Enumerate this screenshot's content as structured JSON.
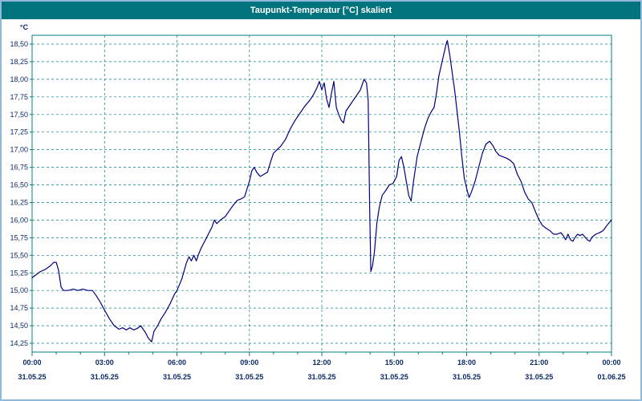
{
  "window": {
    "title": "Taupunkt-Temperatur [°C] skaliert"
  },
  "colors": {
    "title_bar": "#00737d",
    "frame": "#92b8d8",
    "grid": "#008080",
    "line": "#000080",
    "label_text": "#0c2a66",
    "plot_bg": "#ffffff"
  },
  "chart_data": {
    "type": "line",
    "title": "Taupunkt-Temperatur [°C] skaliert",
    "xlabel": "",
    "ylabel": "°C",
    "grid": true,
    "legend": "none",
    "xlim": [
      0,
      24
    ],
    "ylim": [
      14.125,
      18.625
    ],
    "y_tick_values": [
      18.5,
      18.25,
      18.0,
      17.75,
      17.5,
      17.25,
      17.0,
      16.75,
      16.5,
      16.25,
      16.0,
      15.75,
      15.5,
      15.25,
      15.0,
      14.75,
      14.5,
      14.25
    ],
    "y_tick_labels": [
      "18,50",
      "18,25",
      "18,00",
      "17,75",
      "17,50",
      "17,25",
      "17,00",
      "16,75",
      "16,50",
      "16,25",
      "16,00",
      "15,75",
      "15,50",
      "15,25",
      "15,00",
      "14,75",
      "14,50",
      "14,25"
    ],
    "x_tick_hours": [
      0,
      3,
      6,
      9,
      12,
      15,
      18,
      21,
      24
    ],
    "x_tick_labels": [
      "00:00",
      "03:00",
      "06:00",
      "09:00",
      "12:00",
      "15:00",
      "18:00",
      "21:00",
      "00:00"
    ],
    "x_date_labels": [
      "31.05.25",
      "31.05.25",
      "31.05.25",
      "31.05.25",
      "31.05.25",
      "31.05.25",
      "31.05.25",
      "31.05.25",
      "01.06.25"
    ],
    "series": [
      {
        "name": "Taupunkt-Temperatur",
        "points": [
          [
            0.0,
            15.18
          ],
          [
            0.15,
            15.22
          ],
          [
            0.35,
            15.27
          ],
          [
            0.55,
            15.3
          ],
          [
            0.75,
            15.35
          ],
          [
            0.9,
            15.4
          ],
          [
            1.0,
            15.4
          ],
          [
            1.1,
            15.28
          ],
          [
            1.2,
            15.05
          ],
          [
            1.3,
            15.0
          ],
          [
            1.5,
            15.0
          ],
          [
            1.7,
            15.02
          ],
          [
            1.9,
            15.0
          ],
          [
            2.1,
            15.02
          ],
          [
            2.3,
            15.0
          ],
          [
            2.5,
            15.0
          ],
          [
            2.65,
            14.93
          ],
          [
            2.8,
            14.85
          ],
          [
            3.0,
            14.72
          ],
          [
            3.2,
            14.6
          ],
          [
            3.4,
            14.5
          ],
          [
            3.6,
            14.45
          ],
          [
            3.75,
            14.47
          ],
          [
            3.9,
            14.44
          ],
          [
            4.05,
            14.47
          ],
          [
            4.2,
            14.44
          ],
          [
            4.35,
            14.46
          ],
          [
            4.5,
            14.5
          ],
          [
            4.6,
            14.45
          ],
          [
            4.7,
            14.4
          ],
          [
            4.8,
            14.33
          ],
          [
            4.95,
            14.27
          ],
          [
            5.05,
            14.42
          ],
          [
            5.2,
            14.5
          ],
          [
            5.35,
            14.6
          ],
          [
            5.5,
            14.68
          ],
          [
            5.7,
            14.8
          ],
          [
            5.9,
            14.95
          ],
          [
            6.0,
            15.0
          ],
          [
            6.1,
            15.08
          ],
          [
            6.2,
            15.16
          ],
          [
            6.3,
            15.28
          ],
          [
            6.4,
            15.4
          ],
          [
            6.5,
            15.48
          ],
          [
            6.6,
            15.42
          ],
          [
            6.7,
            15.5
          ],
          [
            6.8,
            15.42
          ],
          [
            6.9,
            15.52
          ],
          [
            7.0,
            15.6
          ],
          [
            7.15,
            15.7
          ],
          [
            7.3,
            15.8
          ],
          [
            7.45,
            15.9
          ],
          [
            7.55,
            16.0
          ],
          [
            7.65,
            15.95
          ],
          [
            7.8,
            16.0
          ],
          [
            8.0,
            16.05
          ],
          [
            8.2,
            16.15
          ],
          [
            8.35,
            16.22
          ],
          [
            8.5,
            16.28
          ],
          [
            8.65,
            16.3
          ],
          [
            8.8,
            16.33
          ],
          [
            9.0,
            16.55
          ],
          [
            9.1,
            16.7
          ],
          [
            9.2,
            16.75
          ],
          [
            9.3,
            16.68
          ],
          [
            9.45,
            16.62
          ],
          [
            9.6,
            16.65
          ],
          [
            9.75,
            16.68
          ],
          [
            9.9,
            16.85
          ],
          [
            10.0,
            16.95
          ],
          [
            10.15,
            17.0
          ],
          [
            10.3,
            17.05
          ],
          [
            10.5,
            17.15
          ],
          [
            10.7,
            17.3
          ],
          [
            10.9,
            17.42
          ],
          [
            11.1,
            17.52
          ],
          [
            11.3,
            17.62
          ],
          [
            11.5,
            17.7
          ],
          [
            11.65,
            17.78
          ],
          [
            11.8,
            17.88
          ],
          [
            11.9,
            17.97
          ],
          [
            12.0,
            17.85
          ],
          [
            12.1,
            17.95
          ],
          [
            12.2,
            17.72
          ],
          [
            12.3,
            17.6
          ],
          [
            12.4,
            17.8
          ],
          [
            12.5,
            17.97
          ],
          [
            12.6,
            17.6
          ],
          [
            12.7,
            17.5
          ],
          [
            12.8,
            17.42
          ],
          [
            12.9,
            17.38
          ],
          [
            13.0,
            17.55
          ],
          [
            13.2,
            17.65
          ],
          [
            13.4,
            17.75
          ],
          [
            13.6,
            17.85
          ],
          [
            13.75,
            18.0
          ],
          [
            13.85,
            17.95
          ],
          [
            13.92,
            17.7
          ],
          [
            13.98,
            16.2
          ],
          [
            14.03,
            15.27
          ],
          [
            14.1,
            15.35
          ],
          [
            14.18,
            15.55
          ],
          [
            14.28,
            15.95
          ],
          [
            14.38,
            16.18
          ],
          [
            14.5,
            16.35
          ],
          [
            14.65,
            16.42
          ],
          [
            14.8,
            16.5
          ],
          [
            14.95,
            16.52
          ],
          [
            15.1,
            16.62
          ],
          [
            15.2,
            16.85
          ],
          [
            15.3,
            16.9
          ],
          [
            15.4,
            16.75
          ],
          [
            15.5,
            16.55
          ],
          [
            15.6,
            16.35
          ],
          [
            15.7,
            16.27
          ],
          [
            15.8,
            16.55
          ],
          [
            15.95,
            16.9
          ],
          [
            16.1,
            17.1
          ],
          [
            16.25,
            17.3
          ],
          [
            16.4,
            17.45
          ],
          [
            16.55,
            17.55
          ],
          [
            16.65,
            17.6
          ],
          [
            16.75,
            17.8
          ],
          [
            16.85,
            18.05
          ],
          [
            16.95,
            18.2
          ],
          [
            17.05,
            18.35
          ],
          [
            17.15,
            18.5
          ],
          [
            17.2,
            18.55
          ],
          [
            17.3,
            18.35
          ],
          [
            17.4,
            18.1
          ],
          [
            17.5,
            17.85
          ],
          [
            17.6,
            17.55
          ],
          [
            17.7,
            17.25
          ],
          [
            17.8,
            16.9
          ],
          [
            17.9,
            16.6
          ],
          [
            18.0,
            16.45
          ],
          [
            18.1,
            16.32
          ],
          [
            18.2,
            16.4
          ],
          [
            18.35,
            16.55
          ],
          [
            18.5,
            16.75
          ],
          [
            18.65,
            16.95
          ],
          [
            18.8,
            17.08
          ],
          [
            18.95,
            17.12
          ],
          [
            19.1,
            17.05
          ],
          [
            19.2,
            16.98
          ],
          [
            19.35,
            16.92
          ],
          [
            19.5,
            16.9
          ],
          [
            19.65,
            16.88
          ],
          [
            19.8,
            16.85
          ],
          [
            19.95,
            16.8
          ],
          [
            20.1,
            16.65
          ],
          [
            20.25,
            16.55
          ],
          [
            20.4,
            16.4
          ],
          [
            20.55,
            16.3
          ],
          [
            20.7,
            16.25
          ],
          [
            20.85,
            16.12
          ],
          [
            21.0,
            16.0
          ],
          [
            21.15,
            15.92
          ],
          [
            21.3,
            15.88
          ],
          [
            21.45,
            15.85
          ],
          [
            21.6,
            15.8
          ],
          [
            21.75,
            15.8
          ],
          [
            21.9,
            15.82
          ],
          [
            22.0,
            15.78
          ],
          [
            22.1,
            15.72
          ],
          [
            22.2,
            15.8
          ],
          [
            22.3,
            15.72
          ],
          [
            22.4,
            15.7
          ],
          [
            22.5,
            15.76
          ],
          [
            22.6,
            15.8
          ],
          [
            22.7,
            15.78
          ],
          [
            22.8,
            15.8
          ],
          [
            22.9,
            15.76
          ],
          [
            23.0,
            15.72
          ],
          [
            23.1,
            15.7
          ],
          [
            23.2,
            15.76
          ],
          [
            23.35,
            15.8
          ],
          [
            23.5,
            15.82
          ],
          [
            23.65,
            15.85
          ],
          [
            23.8,
            15.92
          ],
          [
            24.0,
            16.0
          ]
        ]
      }
    ]
  }
}
